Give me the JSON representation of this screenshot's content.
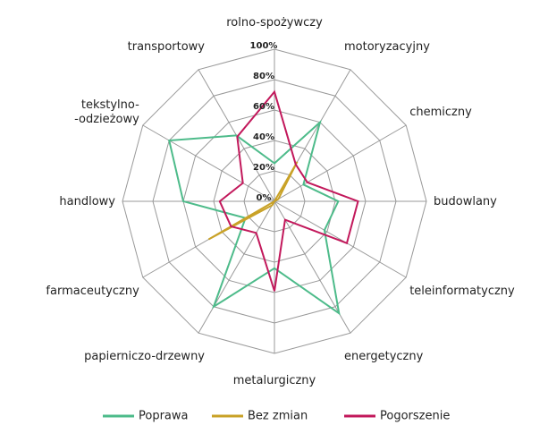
{
  "chart_data": {
    "type": "radar",
    "categories": [
      "rolno-spożywczy",
      "motoryzacyjny",
      "chemiczny",
      "budowlany",
      "teleinformatyczny",
      "energetyczny",
      "metalurgiczny",
      "papierniczo-drzewny",
      "farmaceutyczny",
      "handlowy",
      "tekstylno-\n-odzieżowy",
      "transportowy"
    ],
    "series": [
      {
        "name": "Poprawa",
        "color": "#4dbb8a",
        "values": [
          25,
          60,
          22,
          42,
          38,
          85,
          44,
          80,
          22,
          60,
          80,
          50
        ]
      },
      {
        "name": "Bez zmian",
        "color": "#c9a227",
        "values": [
          0,
          30,
          3,
          0,
          0,
          0,
          0,
          3,
          50,
          0,
          0,
          0
        ]
      },
      {
        "name": "Pogorszenie",
        "color": "#c2185b",
        "values": [
          72,
          28,
          25,
          55,
          55,
          14,
          59,
          24,
          33,
          36,
          24,
          49
        ]
      }
    ],
    "rlim": [
      0,
      100
    ],
    "rticks": [
      {
        "value": 0,
        "label": "0%"
      },
      {
        "value": 20,
        "label": "20%"
      },
      {
        "value": 40,
        "label": "40%"
      },
      {
        "value": 60,
        "label": "60%"
      },
      {
        "value": 80,
        "label": "80%"
      },
      {
        "value": 100,
        "label": "100%"
      }
    ],
    "legend": "bottom"
  }
}
